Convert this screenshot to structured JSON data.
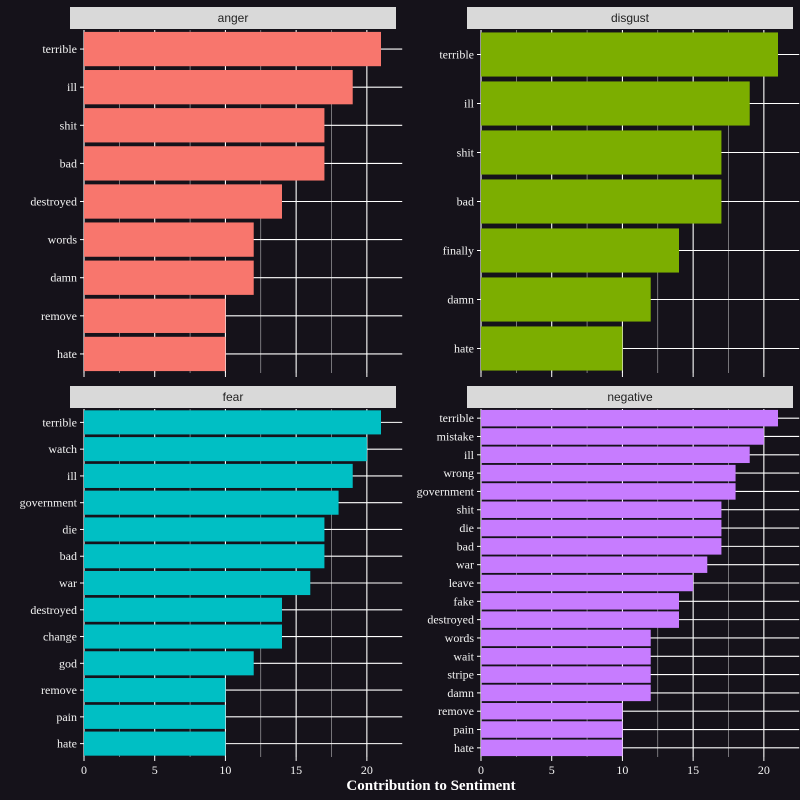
{
  "chart_data": {
    "type": "bar",
    "orientation": "horizontal",
    "xlabel": "Contribution to Sentiment",
    "xlim": [
      0,
      22.5
    ],
    "xticks": [
      "0",
      "5",
      "10",
      "15",
      "20"
    ],
    "grid": true,
    "legend": "none",
    "colors": {
      "background": "#15121a",
      "strip": "#d9d9d9",
      "grid": "#ffffff",
      "text": "#f2f2f2"
    },
    "panels": [
      {
        "title": "anger",
        "color": "#f8766d",
        "categories": [
          "terrible",
          "ill",
          "shit",
          "bad",
          "destroyed",
          "words",
          "damn",
          "remove",
          "hate"
        ],
        "values": [
          21,
          19,
          17,
          17,
          14,
          12,
          12,
          10,
          10
        ]
      },
      {
        "title": "disgust",
        "color": "#7cae00",
        "categories": [
          "terrible",
          "ill",
          "shit",
          "bad",
          "finally",
          "damn",
          "hate"
        ],
        "values": [
          21,
          19,
          17,
          17,
          14,
          12,
          10
        ]
      },
      {
        "title": "fear",
        "color": "#00bfc4",
        "categories": [
          "terrible",
          "watch",
          "ill",
          "government",
          "die",
          "bad",
          "war",
          "destroyed",
          "change",
          "god",
          "remove",
          "pain",
          "hate"
        ],
        "values": [
          21,
          20,
          19,
          18,
          17,
          17,
          16,
          14,
          14,
          12,
          10,
          10,
          10
        ]
      },
      {
        "title": "negative",
        "color": "#c77cff",
        "categories": [
          "terrible",
          "mistake",
          "ill",
          "wrong",
          "government",
          "shit",
          "die",
          "bad",
          "war",
          "leave",
          "fake",
          "destroyed",
          "words",
          "wait",
          "stripe",
          "damn",
          "remove",
          "pain",
          "hate"
        ],
        "values": [
          21,
          20,
          19,
          18,
          18,
          17,
          17,
          17,
          16,
          15,
          14,
          14,
          12,
          12,
          12,
          12,
          10,
          10,
          10
        ]
      }
    ]
  }
}
